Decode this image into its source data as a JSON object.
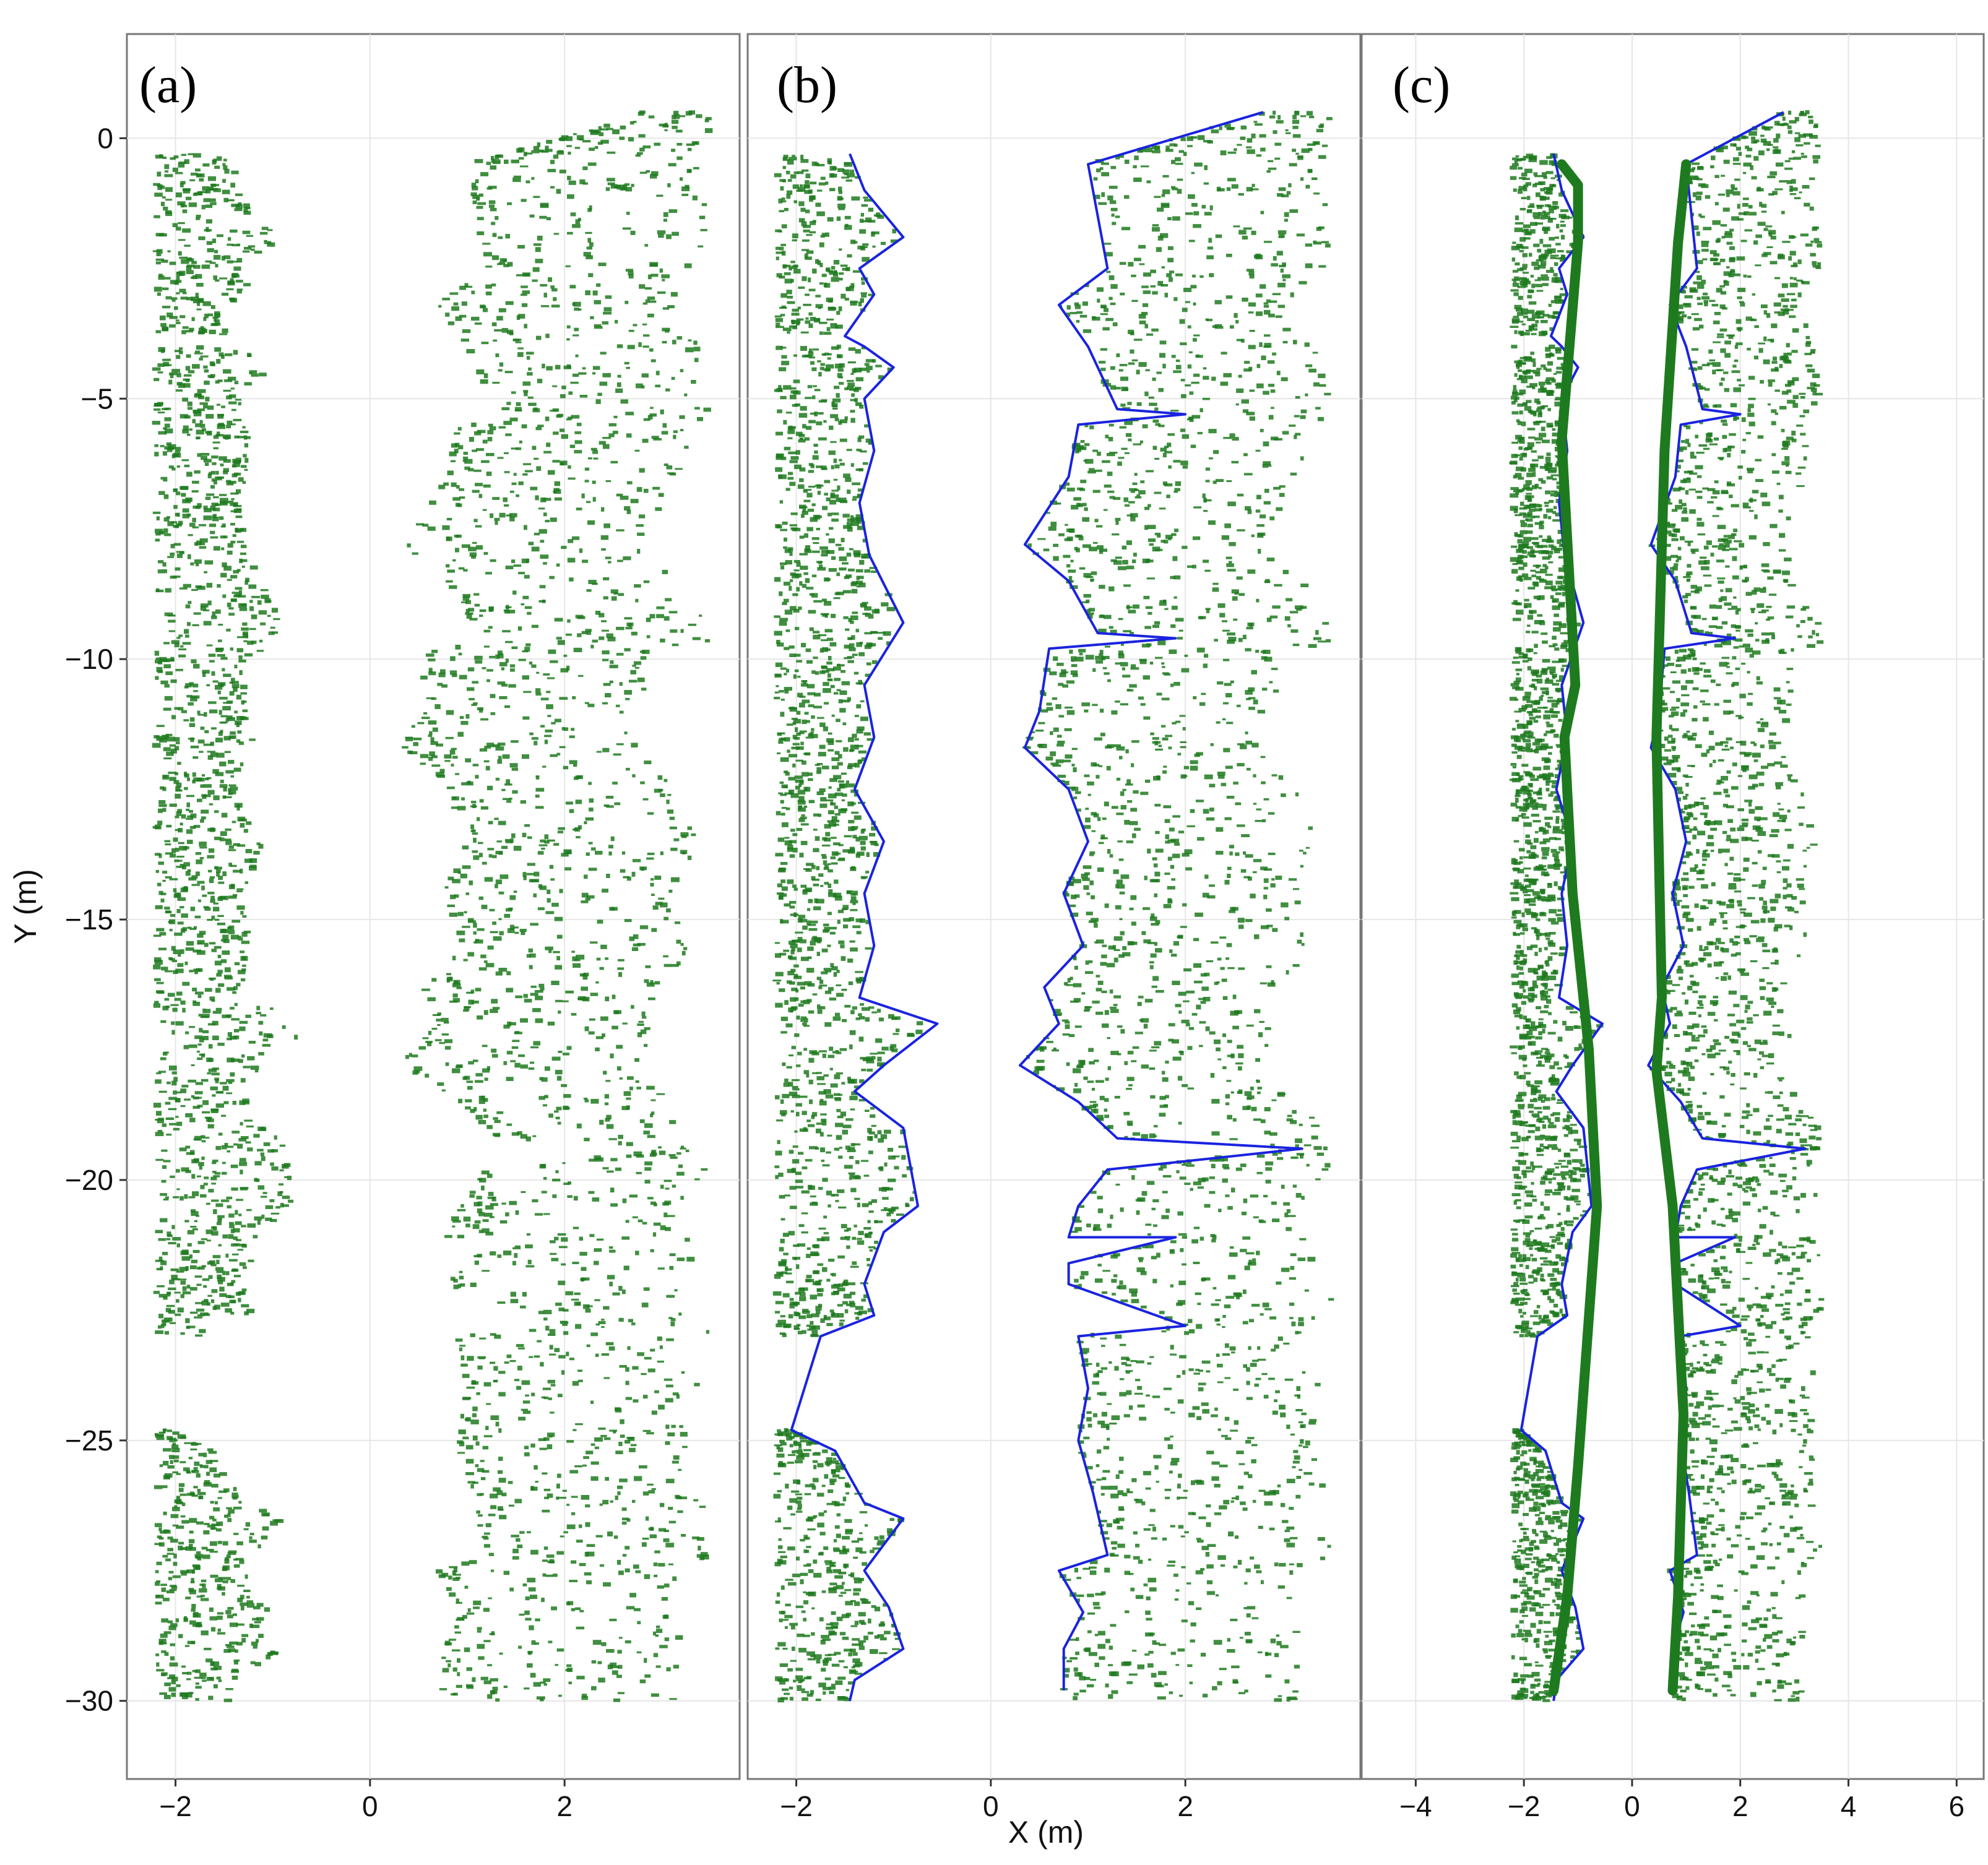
{
  "chart_data": {
    "type": "scatter",
    "colors": {
      "points": "#1e7a1e",
      "boundary": "#1a23e0",
      "fit": "#1e7a1e"
    },
    "shared": {
      "xlabel": "X (m)",
      "ylabel": "Y (m)",
      "ylim": [
        -31.5,
        2
      ],
      "yticks": [
        0,
        -5,
        -10,
        -15,
        -20,
        -25,
        -30
      ],
      "grid": true
    },
    "panels": [
      {
        "label": "(a)",
        "xlim": [
          -2.5,
          3.8
        ],
        "xticks": [
          -2,
          0,
          2
        ],
        "series": [
          {
            "kind": "point-cloud",
            "rows": [
              "left",
              "right"
            ]
          }
        ]
      },
      {
        "label": "(b)",
        "xlim": [
          -2.5,
          3.8
        ],
        "xticks": [
          -2,
          0,
          2
        ],
        "series": [
          {
            "kind": "point-cloud",
            "rows": [
              "left",
              "right"
            ]
          },
          {
            "kind": "boundary-line",
            "rows": [
              "left",
              "right"
            ]
          }
        ]
      },
      {
        "label": "(c)",
        "xlim": [
          -5,
          6.5
        ],
        "xticks": [
          -4,
          -2,
          0,
          2,
          4,
          6
        ],
        "series": [
          {
            "kind": "point-cloud",
            "rows": [
              "left",
              "right"
            ]
          },
          {
            "kind": "boundary-line",
            "rows": [
              "left",
              "right"
            ]
          },
          {
            "kind": "fitted-line",
            "rows": [
              "left",
              "right"
            ]
          }
        ]
      }
    ],
    "rows": {
      "left": {
        "segments": [
          [
            -0.3,
            -3.8
          ],
          [
            -4.0,
            -23.0
          ],
          [
            -24.8,
            -30.0
          ]
        ],
        "inner_edge_profile": [
          [
            -0.3,
            -1.45
          ],
          [
            -1.0,
            -1.3
          ],
          [
            -1.9,
            -0.9
          ],
          [
            -2.5,
            -1.35
          ],
          [
            -3.0,
            -1.2
          ],
          [
            -3.8,
            -1.5
          ],
          [
            -4.0,
            -1.3
          ],
          [
            -4.4,
            -1.0
          ],
          [
            -5.0,
            -1.3
          ],
          [
            -6.0,
            -1.2
          ],
          [
            -7.0,
            -1.35
          ],
          [
            -8.0,
            -1.25
          ],
          [
            -9.3,
            -0.9
          ],
          [
            -10.5,
            -1.3
          ],
          [
            -11.5,
            -1.2
          ],
          [
            -12.5,
            -1.4
          ],
          [
            -13.5,
            -1.1
          ],
          [
            -14.5,
            -1.3
          ],
          [
            -15.5,
            -1.2
          ],
          [
            -16.5,
            -1.35
          ],
          [
            -17.0,
            -0.55
          ],
          [
            -17.8,
            -1.1
          ],
          [
            -18.3,
            -1.4
          ],
          [
            -19.0,
            -0.9
          ],
          [
            -20.5,
            -0.75
          ],
          [
            -21.0,
            -1.1
          ],
          [
            -22.0,
            -1.3
          ],
          [
            -22.6,
            -1.2
          ],
          [
            -23.0,
            -1.75
          ],
          [
            -24.8,
            -2.05
          ],
          [
            -25.2,
            -1.6
          ],
          [
            -26.2,
            -1.3
          ],
          [
            -26.5,
            -0.9
          ],
          [
            -27.5,
            -1.3
          ],
          [
            -28.2,
            -1.05
          ],
          [
            -29.0,
            -0.9
          ],
          [
            -29.6,
            -1.4
          ],
          [
            -30.0,
            -1.45
          ]
        ],
        "fitted_line": [
          [
            -0.5,
            -1.3
          ],
          [
            -0.9,
            -1.0
          ],
          [
            -2.0,
            -1.0
          ],
          [
            -5.8,
            -1.3
          ],
          [
            -10.5,
            -1.05
          ],
          [
            -11.5,
            -1.25
          ],
          [
            -14.5,
            -1.1
          ],
          [
            -17.5,
            -0.8
          ],
          [
            -20.5,
            -0.65
          ],
          [
            -25.5,
            -1.0
          ],
          [
            -28.0,
            -1.2
          ],
          [
            -29.8,
            -1.45
          ]
        ],
        "outer_x": -2.2
      },
      "right": {
        "segments": [
          [
            0.5,
            -30.0
          ]
        ],
        "inner_edge_profile": [
          [
            0.5,
            2.8
          ],
          [
            -0.5,
            1.0
          ],
          [
            -1.5,
            1.1
          ],
          [
            -2.5,
            1.2
          ],
          [
            -3.2,
            0.7
          ],
          [
            -4.0,
            1.0
          ],
          [
            -5.2,
            1.3
          ],
          [
            -5.3,
            2.0
          ],
          [
            -5.5,
            0.9
          ],
          [
            -6.5,
            0.8
          ],
          [
            -7.8,
            0.35
          ],
          [
            -8.5,
            0.8
          ],
          [
            -9.5,
            1.1
          ],
          [
            -9.6,
            1.9
          ],
          [
            -9.8,
            0.6
          ],
          [
            -11.0,
            0.5
          ],
          [
            -11.7,
            0.35
          ],
          [
            -12.5,
            0.8
          ],
          [
            -13.5,
            1.0
          ],
          [
            -14.5,
            0.75
          ],
          [
            -15.5,
            0.95
          ],
          [
            -16.3,
            0.55
          ],
          [
            -17.0,
            0.7
          ],
          [
            -17.8,
            0.3
          ],
          [
            -18.5,
            0.9
          ],
          [
            -19.2,
            1.3
          ],
          [
            -19.4,
            3.2
          ],
          [
            -19.8,
            1.2
          ],
          [
            -20.5,
            0.9
          ],
          [
            -21.1,
            0.8
          ],
          [
            -21.1,
            1.9
          ],
          [
            -21.6,
            0.8
          ],
          [
            -22.0,
            0.8
          ],
          [
            -22.8,
            2.0
          ],
          [
            -23.0,
            0.9
          ],
          [
            -24.0,
            1.0
          ],
          [
            -25.0,
            0.9
          ],
          [
            -26.0,
            1.05
          ],
          [
            -27.2,
            1.2
          ],
          [
            -27.5,
            0.7
          ],
          [
            -28.3,
            0.95
          ],
          [
            -29.0,
            0.75
          ],
          [
            -29.8,
            0.75
          ]
        ],
        "fitted_line": [
          [
            -0.5,
            1.0
          ],
          [
            -2.0,
            0.85
          ],
          [
            -6.0,
            0.6
          ],
          [
            -11.5,
            0.45
          ],
          [
            -16.5,
            0.55
          ],
          [
            -17.9,
            0.45
          ],
          [
            -20.5,
            0.75
          ],
          [
            -24.5,
            0.95
          ],
          [
            -28.0,
            0.85
          ],
          [
            -29.8,
            0.75
          ]
        ],
        "outer_x": 3.5
      }
    }
  }
}
